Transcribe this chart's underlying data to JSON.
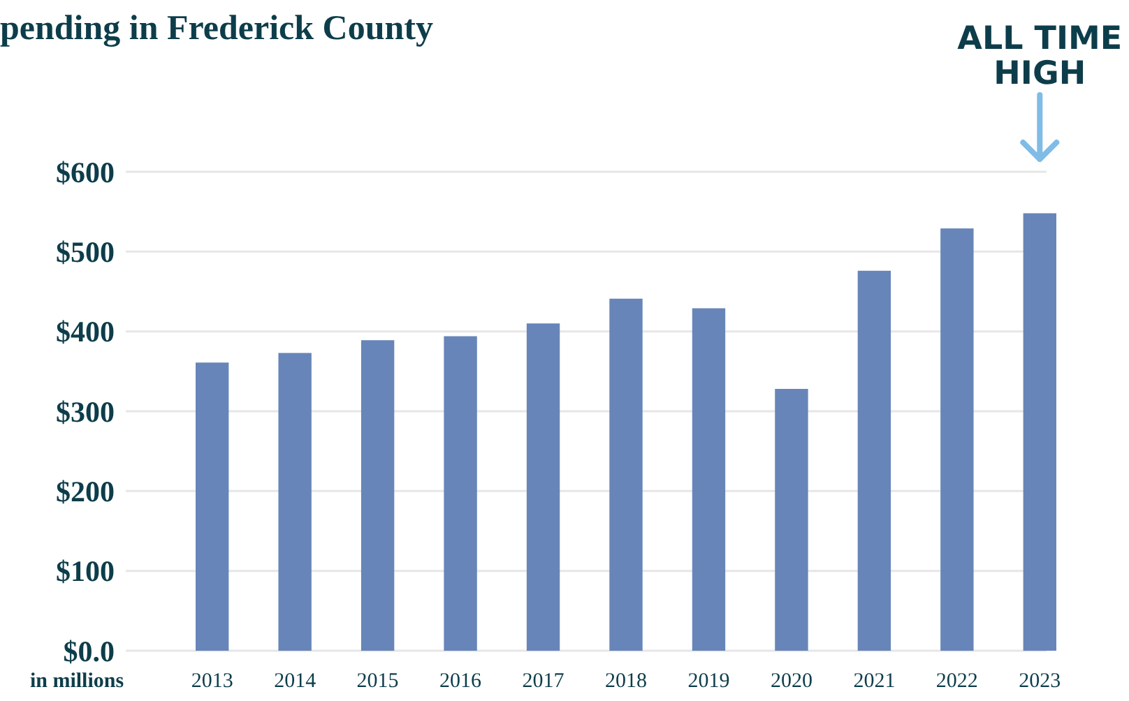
{
  "chart_data": {
    "type": "bar",
    "title": "pending in Frederick County",
    "ylabel": "in millions",
    "categories": [
      "2013",
      "2014",
      "2015",
      "2016",
      "2017",
      "2018",
      "2019",
      "2020",
      "2021",
      "2022",
      "2023"
    ],
    "values": [
      361,
      373,
      389,
      394,
      410,
      441,
      429,
      328,
      476,
      529,
      548
    ],
    "color": "#6785b8",
    "ylim": [
      0,
      600
    ],
    "yticks": [
      {
        "value": 0,
        "label": "$0.0"
      },
      {
        "value": 100,
        "label": "$100"
      },
      {
        "value": 200,
        "label": "$200"
      },
      {
        "value": 300,
        "label": "$300"
      },
      {
        "value": 400,
        "label": "$400"
      },
      {
        "value": 500,
        "label": "$500"
      },
      {
        "value": 600,
        "label": "$600"
      }
    ],
    "grid": "y",
    "annotations": [
      "ALL TIME HIGH"
    ]
  }
}
